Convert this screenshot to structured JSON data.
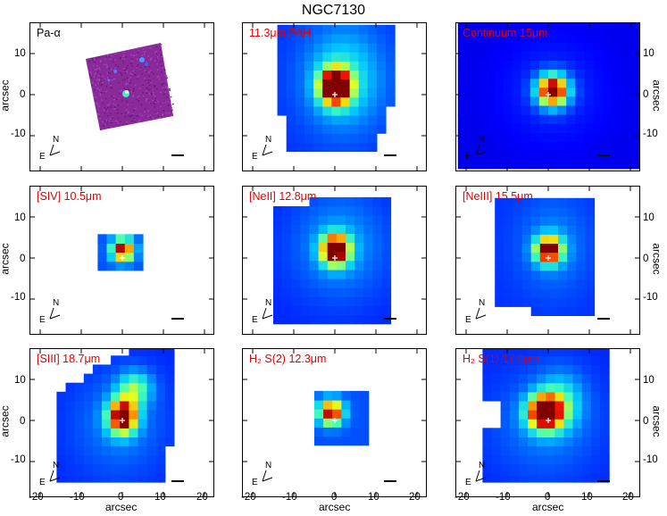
{
  "figure": {
    "title": "NGC7130",
    "axis_label": "arcsec",
    "x_ticks": [
      "-20",
      "-10",
      "0",
      "10",
      "20"
    ],
    "y_ticks": [
      "10",
      "0",
      "-10"
    ],
    "compass": {
      "north": "N",
      "east": "E"
    }
  },
  "panels": [
    {
      "label": "Pa-α",
      "label_color": "#000000",
      "map": "paalpha"
    },
    {
      "label": "11.3μm PAH",
      "label_color": "#e00000",
      "map": "pah"
    },
    {
      "label": "Continuum 15μm",
      "label_color": "#e00000",
      "map": "continuum"
    },
    {
      "label": "[SIV] 10.5μm",
      "label_color": "#e00000",
      "map": "siv"
    },
    {
      "label": "[NeII] 12.8μm",
      "label_color": "#e00000",
      "map": "neii"
    },
    {
      "label": "[NeIII] 15.5μm",
      "label_color": "#e00000",
      "map": "neiii"
    },
    {
      "label": "[SIII] 18.7μm",
      "label_color": "#e00000",
      "map": "siii"
    },
    {
      "label": "H₂ S(2) 12.3μm",
      "label_color": "#e00000",
      "map": "h2s2"
    },
    {
      "label": "H₂ S(1) 17.0μm",
      "label_color": "#e00000",
      "map": "h2s1"
    }
  ],
  "colors": {
    "jet_dark_blue": "#00008f",
    "jet_blue": "#0040ff",
    "jet_cyan": "#00c0ff",
    "jet_green": "#40ffb0",
    "jet_yellow": "#ffff00",
    "jet_orange": "#ff8000",
    "jet_red": "#e00000",
    "jet_dark_red": "#800000",
    "paalpha_bg": "#8a2a9a"
  }
}
